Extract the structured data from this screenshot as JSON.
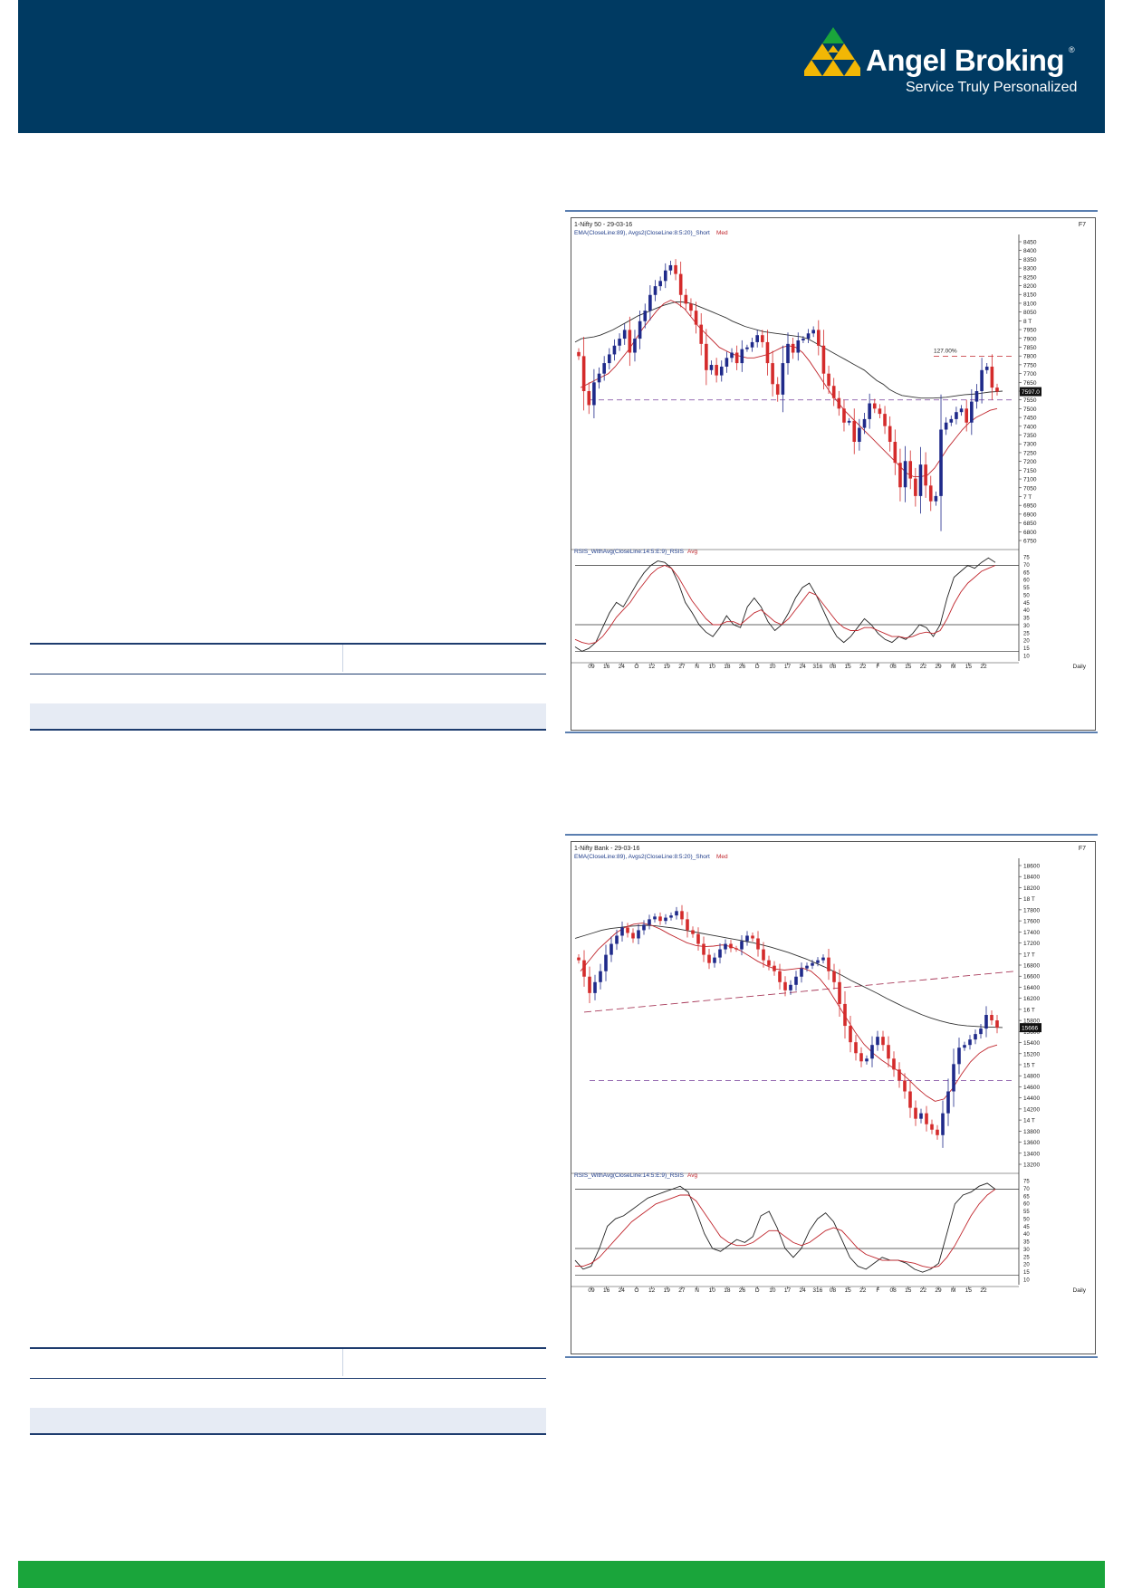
{
  "brand": {
    "name": "Angel Broking",
    "registered": "®",
    "tagline": "Service Truly Personalized",
    "header_color": "#003a62",
    "footer_color": "#1aa53b"
  },
  "chart_data": [
    {
      "type": "candlestick",
      "title": "1-Nifty 50 - 29-03-16",
      "corner_label": "F7",
      "indicator_label": "EMA(CloseLine:89), Avgs2(CloseLine:8:5:20)_Short",
      "indicator_suffix": "Med",
      "fib_label": "127.00%",
      "price_tag": "7597.0",
      "period_label": "Daily",
      "y_ticks": [
        "8450",
        "8400",
        "8350",
        "8300",
        "8250",
        "8200",
        "8150",
        "8100",
        "8050",
        "8 T",
        "7950",
        "7900",
        "7850",
        "7800",
        "7750",
        "7700",
        "7650",
        "7600",
        "7550",
        "7500",
        "7450",
        "7400",
        "7350",
        "7300",
        "7250",
        "7200",
        "7150",
        "7100",
        "7050",
        "7 T",
        "6950",
        "6900",
        "6850",
        "6800",
        "6750"
      ],
      "ylim": [
        6725,
        8475
      ],
      "closes": [
        7800,
        7600,
        7520,
        7650,
        7700,
        7760,
        7810,
        7860,
        7900,
        7950,
        7820,
        7900,
        8000,
        8060,
        8150,
        8200,
        8230,
        8290,
        8320,
        8270,
        8150,
        8100,
        8060,
        7980,
        7870,
        7720,
        7750,
        7690,
        7740,
        7790,
        7820,
        7760,
        7840,
        7850,
        7880,
        7920,
        7880,
        7760,
        7640,
        7580,
        7760,
        7870,
        7820,
        7890,
        7900,
        7930,
        7950,
        7860,
        7700,
        7630,
        7560,
        7500,
        7420,
        7430,
        7310,
        7390,
        7440,
        7530,
        7500,
        7470,
        7400,
        7310,
        7190,
        7050,
        7200,
        7100,
        7000,
        7180,
        7060,
        6970,
        7000,
        7380,
        7420,
        7440,
        7480,
        7500,
        7420,
        7540,
        7600,
        7720,
        7740,
        7620,
        7597
      ],
      "ema_series": [
        7880,
        7900,
        7905,
        7910,
        7920,
        7935,
        7950,
        7970,
        7990,
        8010,
        8030,
        8045,
        8060,
        8075,
        8090,
        8100,
        8110,
        8110,
        8105,
        8095,
        8080,
        8065,
        8050,
        8035,
        8020,
        8000,
        7985,
        7970,
        7960,
        7950,
        7940,
        7935,
        7930,
        7925,
        7920,
        7915,
        7910,
        7900,
        7880,
        7860,
        7840,
        7820,
        7800,
        7780,
        7760,
        7740,
        7720,
        7690,
        7660,
        7640,
        7610,
        7590,
        7575,
        7570,
        7565,
        7560,
        7560,
        7560,
        7562,
        7565,
        7570,
        7575,
        7580,
        7582,
        7585,
        7590,
        7595,
        7597,
        7600
      ],
      "avg_short_series": [
        7620,
        7640,
        7660,
        7680,
        7700,
        7740,
        7790,
        7840,
        7900,
        7960,
        8010,
        8060,
        8100,
        8120,
        8100,
        8070,
        8020,
        7970,
        7930,
        7890,
        7850,
        7830,
        7810,
        7800,
        7790,
        7790,
        7800,
        7810,
        7830,
        7850,
        7860,
        7850,
        7820,
        7770,
        7710,
        7650,
        7590,
        7540,
        7490,
        7450,
        7410,
        7370,
        7330,
        7290,
        7250,
        7210,
        7170,
        7130,
        7110,
        7110,
        7120,
        7160,
        7220,
        7280,
        7330,
        7380,
        7420,
        7450,
        7470,
        7490,
        7500
      ],
      "support_y": 7550,
      "resistance_y": 7800,
      "rsi": {
        "label": "RSIS_WithAvg(CloseLine:14:5:E:9)_RSIS",
        "label_suffix": "Avg",
        "ticks": [
          "75",
          "70",
          "65",
          "60",
          "55",
          "50",
          "45",
          "40",
          "35",
          "30",
          "25",
          "20",
          "15",
          "10"
        ],
        "ylim": [
          8,
          77
        ],
        "overbought": 70,
        "oversold": 30,
        "lower_line": 12,
        "rsis": [
          15,
          12,
          14,
          18,
          28,
          38,
          45,
          42,
          50,
          58,
          65,
          70,
          73,
          72,
          68,
          58,
          45,
          38,
          30,
          25,
          22,
          28,
          36,
          30,
          28,
          42,
          48,
          42,
          32,
          26,
          30,
          38,
          48,
          55,
          58,
          50,
          40,
          30,
          22,
          18,
          22,
          28,
          34,
          30,
          24,
          20,
          18,
          22,
          20,
          24,
          30,
          28,
          22,
          30,
          48,
          62,
          66,
          70,
          68,
          72,
          75,
          72
        ],
        "avg": [
          20,
          18,
          17,
          18,
          22,
          28,
          35,
          40,
          45,
          52,
          58,
          64,
          68,
          70,
          68,
          62,
          54,
          46,
          40,
          34,
          30,
          30,
          32,
          32,
          30,
          34,
          38,
          40,
          36,
          32,
          30,
          34,
          40,
          46,
          52,
          50,
          44,
          38,
          32,
          28,
          26,
          26,
          28,
          28,
          26,
          24,
          22,
          22,
          21,
          22,
          24,
          25,
          24,
          26,
          34,
          44,
          52,
          58,
          62,
          66,
          68,
          70
        ]
      },
      "x_ticks": [
        "09",
        "16",
        "24",
        "O",
        "12",
        "19",
        "27",
        "N",
        "10",
        "18",
        "26",
        "D",
        "10",
        "17",
        "24",
        "316",
        "08",
        "15",
        "22",
        "F",
        "08",
        "15",
        "22",
        "29",
        "M",
        "15",
        "22"
      ]
    },
    {
      "type": "candlestick",
      "title": "1-Nifty Bank - 29-03-16",
      "corner_label": "F7",
      "indicator_label": "EMA(CloseLine:89), Avgs2(CloseLine:8:5:20)_Short",
      "indicator_suffix": "Med",
      "price_tag": "15666",
      "period_label": "Daily",
      "y_ticks": [
        "18600",
        "18400",
        "18200",
        "18 T",
        "17800",
        "17600",
        "17400",
        "17200",
        "17 T",
        "16800",
        "16600",
        "16400",
        "16200",
        "16 T",
        "15800",
        "15600",
        "15400",
        "15200",
        "15 T",
        "14800",
        "14600",
        "14400",
        "14200",
        "14 T",
        "13800",
        "13600",
        "13400",
        "13200"
      ],
      "ylim": [
        13100,
        18700
      ],
      "closes": [
        16900,
        16600,
        16300,
        16500,
        16700,
        17000,
        17200,
        17350,
        17500,
        17400,
        17300,
        17450,
        17550,
        17650,
        17700,
        17620,
        17680,
        17720,
        17800,
        17650,
        17450,
        17380,
        17200,
        17000,
        16850,
        16950,
        17100,
        17200,
        17120,
        17100,
        17250,
        17350,
        17300,
        17100,
        16900,
        16800,
        16700,
        16500,
        16350,
        16450,
        16600,
        16750,
        16800,
        16850,
        16900,
        16950,
        16700,
        16500,
        16100,
        15700,
        15400,
        15200,
        15050,
        15100,
        15350,
        15500,
        15350,
        15100,
        14900,
        14700,
        14500,
        14200,
        14000,
        14100,
        13900,
        13800,
        13700,
        14100,
        14500,
        15000,
        15300,
        15350,
        15450,
        15550,
        15650,
        15900,
        15800,
        15666
      ],
      "ema_series": [
        17300,
        17350,
        17400,
        17450,
        17480,
        17500,
        17520,
        17530,
        17540,
        17530,
        17510,
        17490,
        17460,
        17430,
        17400,
        17370,
        17340,
        17310,
        17280,
        17250,
        17220,
        17180,
        17140,
        17090,
        17040,
        16980,
        16920,
        16850,
        16780,
        16700,
        16620,
        16530,
        16450,
        16370,
        16290,
        16200,
        16120,
        16040,
        15970,
        15900,
        15840,
        15790,
        15750,
        15720,
        15700,
        15690,
        15680,
        15675,
        15670
      ],
      "avg_short_series": [
        16700,
        16900,
        17100,
        17250,
        17400,
        17500,
        17560,
        17580,
        17540,
        17470,
        17380,
        17300,
        17220,
        17170,
        17150,
        17160,
        17180,
        17150,
        17080,
        16980,
        16880,
        16800,
        16740,
        16720,
        16740,
        16760,
        16700,
        16560,
        16360,
        16100,
        15840,
        15580,
        15360,
        15200,
        15070,
        14960,
        14860,
        14720,
        14560,
        14420,
        14320,
        14360,
        14560,
        14820,
        15040,
        15200,
        15300,
        15350
      ],
      "trend_line": {
        "from": 15950,
        "to": 16700
      },
      "support_y": 14700,
      "rsi": {
        "label": "RSIS_WithAvg(CloseLine:14:5:E:9)_RSIS",
        "label_suffix": "Avg",
        "ticks": [
          "75",
          "70",
          "65",
          "60",
          "55",
          "50",
          "45",
          "40",
          "35",
          "30",
          "25",
          "20",
          "15",
          "10"
        ],
        "ylim": [
          8,
          77
        ],
        "overbought": 70,
        "oversold": 30,
        "lower_line": 12,
        "rsis": [
          22,
          16,
          18,
          30,
          45,
          50,
          52,
          56,
          60,
          64,
          66,
          68,
          70,
          72,
          68,
          55,
          40,
          30,
          28,
          32,
          36,
          34,
          38,
          52,
          55,
          44,
          30,
          24,
          30,
          42,
          50,
          54,
          48,
          36,
          24,
          18,
          16,
          20,
          24,
          22,
          22,
          20,
          16,
          14,
          16,
          20,
          40,
          60,
          66,
          68,
          72,
          74,
          70
        ],
        "avg": [
          18,
          18,
          20,
          24,
          30,
          36,
          42,
          48,
          52,
          56,
          60,
          62,
          64,
          66,
          66,
          62,
          54,
          46,
          38,
          34,
          32,
          32,
          34,
          38,
          42,
          42,
          38,
          34,
          32,
          34,
          38,
          42,
          44,
          42,
          36,
          30,
          26,
          24,
          22,
          22,
          22,
          21,
          20,
          18,
          17,
          18,
          24,
          32,
          42,
          52,
          60,
          66,
          70
        ]
      },
      "x_ticks": [
        "09",
        "16",
        "24",
        "O",
        "12",
        "19",
        "27",
        "N",
        "10",
        "18",
        "26",
        "D",
        "10",
        "17",
        "24",
        "316",
        "08",
        "15",
        "22",
        "F",
        "08",
        "15",
        "22",
        "29",
        "M",
        "15",
        "22"
      ]
    }
  ]
}
